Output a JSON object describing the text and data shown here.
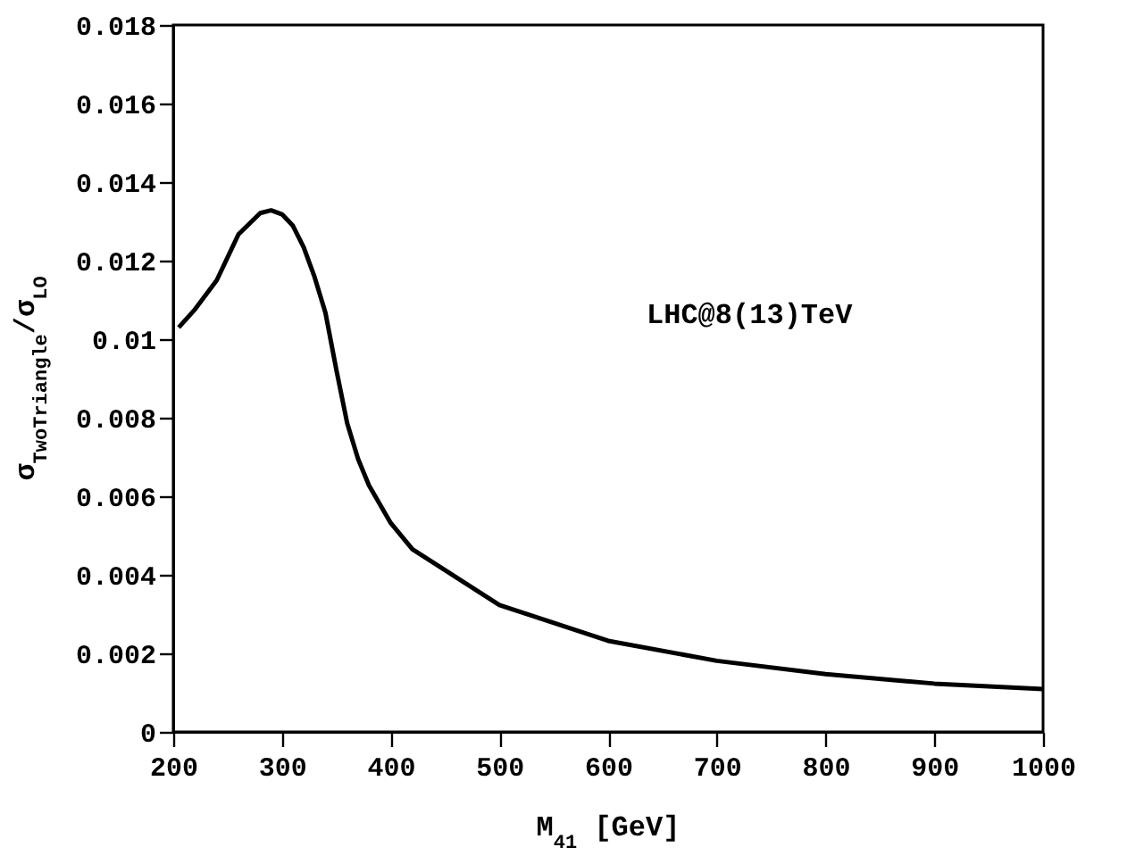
{
  "chart_data": {
    "type": "line",
    "xlabel": "M$_{41}$ [GeV]",
    "ylabel": "σ$_{TwoTriangle}$/σ$_{LO}$",
    "annotations": [
      "LHC@8(13)TeV"
    ],
    "series": [
      {
        "color": "#000000",
        "x": [
          205,
          220,
          240,
          260,
          280,
          290,
          300,
          310,
          320,
          330,
          340,
          350,
          360,
          370,
          380,
          400,
          420,
          500,
          600,
          700,
          800,
          900,
          1000
        ],
        "values": [
          0.0103,
          0.01076,
          0.0115,
          0.01267,
          0.01321,
          0.01328,
          0.01318,
          0.01289,
          0.01234,
          0.01158,
          0.01067,
          0.00922,
          0.00786,
          0.00695,
          0.00628,
          0.00532,
          0.00465,
          0.00323,
          0.00232,
          0.00181,
          0.00147,
          0.00123,
          0.00109
        ]
      }
    ],
    "xlim": [
      200,
      1000
    ],
    "xticks": [
      200,
      300,
      400,
      500,
      600,
      700,
      800,
      900,
      1000
    ],
    "ylim": [
      0,
      0.018
    ],
    "yticks": [
      0,
      0.002,
      0.004,
      0.006,
      0.008,
      0.01,
      0.012,
      0.014,
      0.016,
      0.018
    ],
    "grid": false,
    "legend": false,
    "marker": "none",
    "line_style": "solid"
  }
}
